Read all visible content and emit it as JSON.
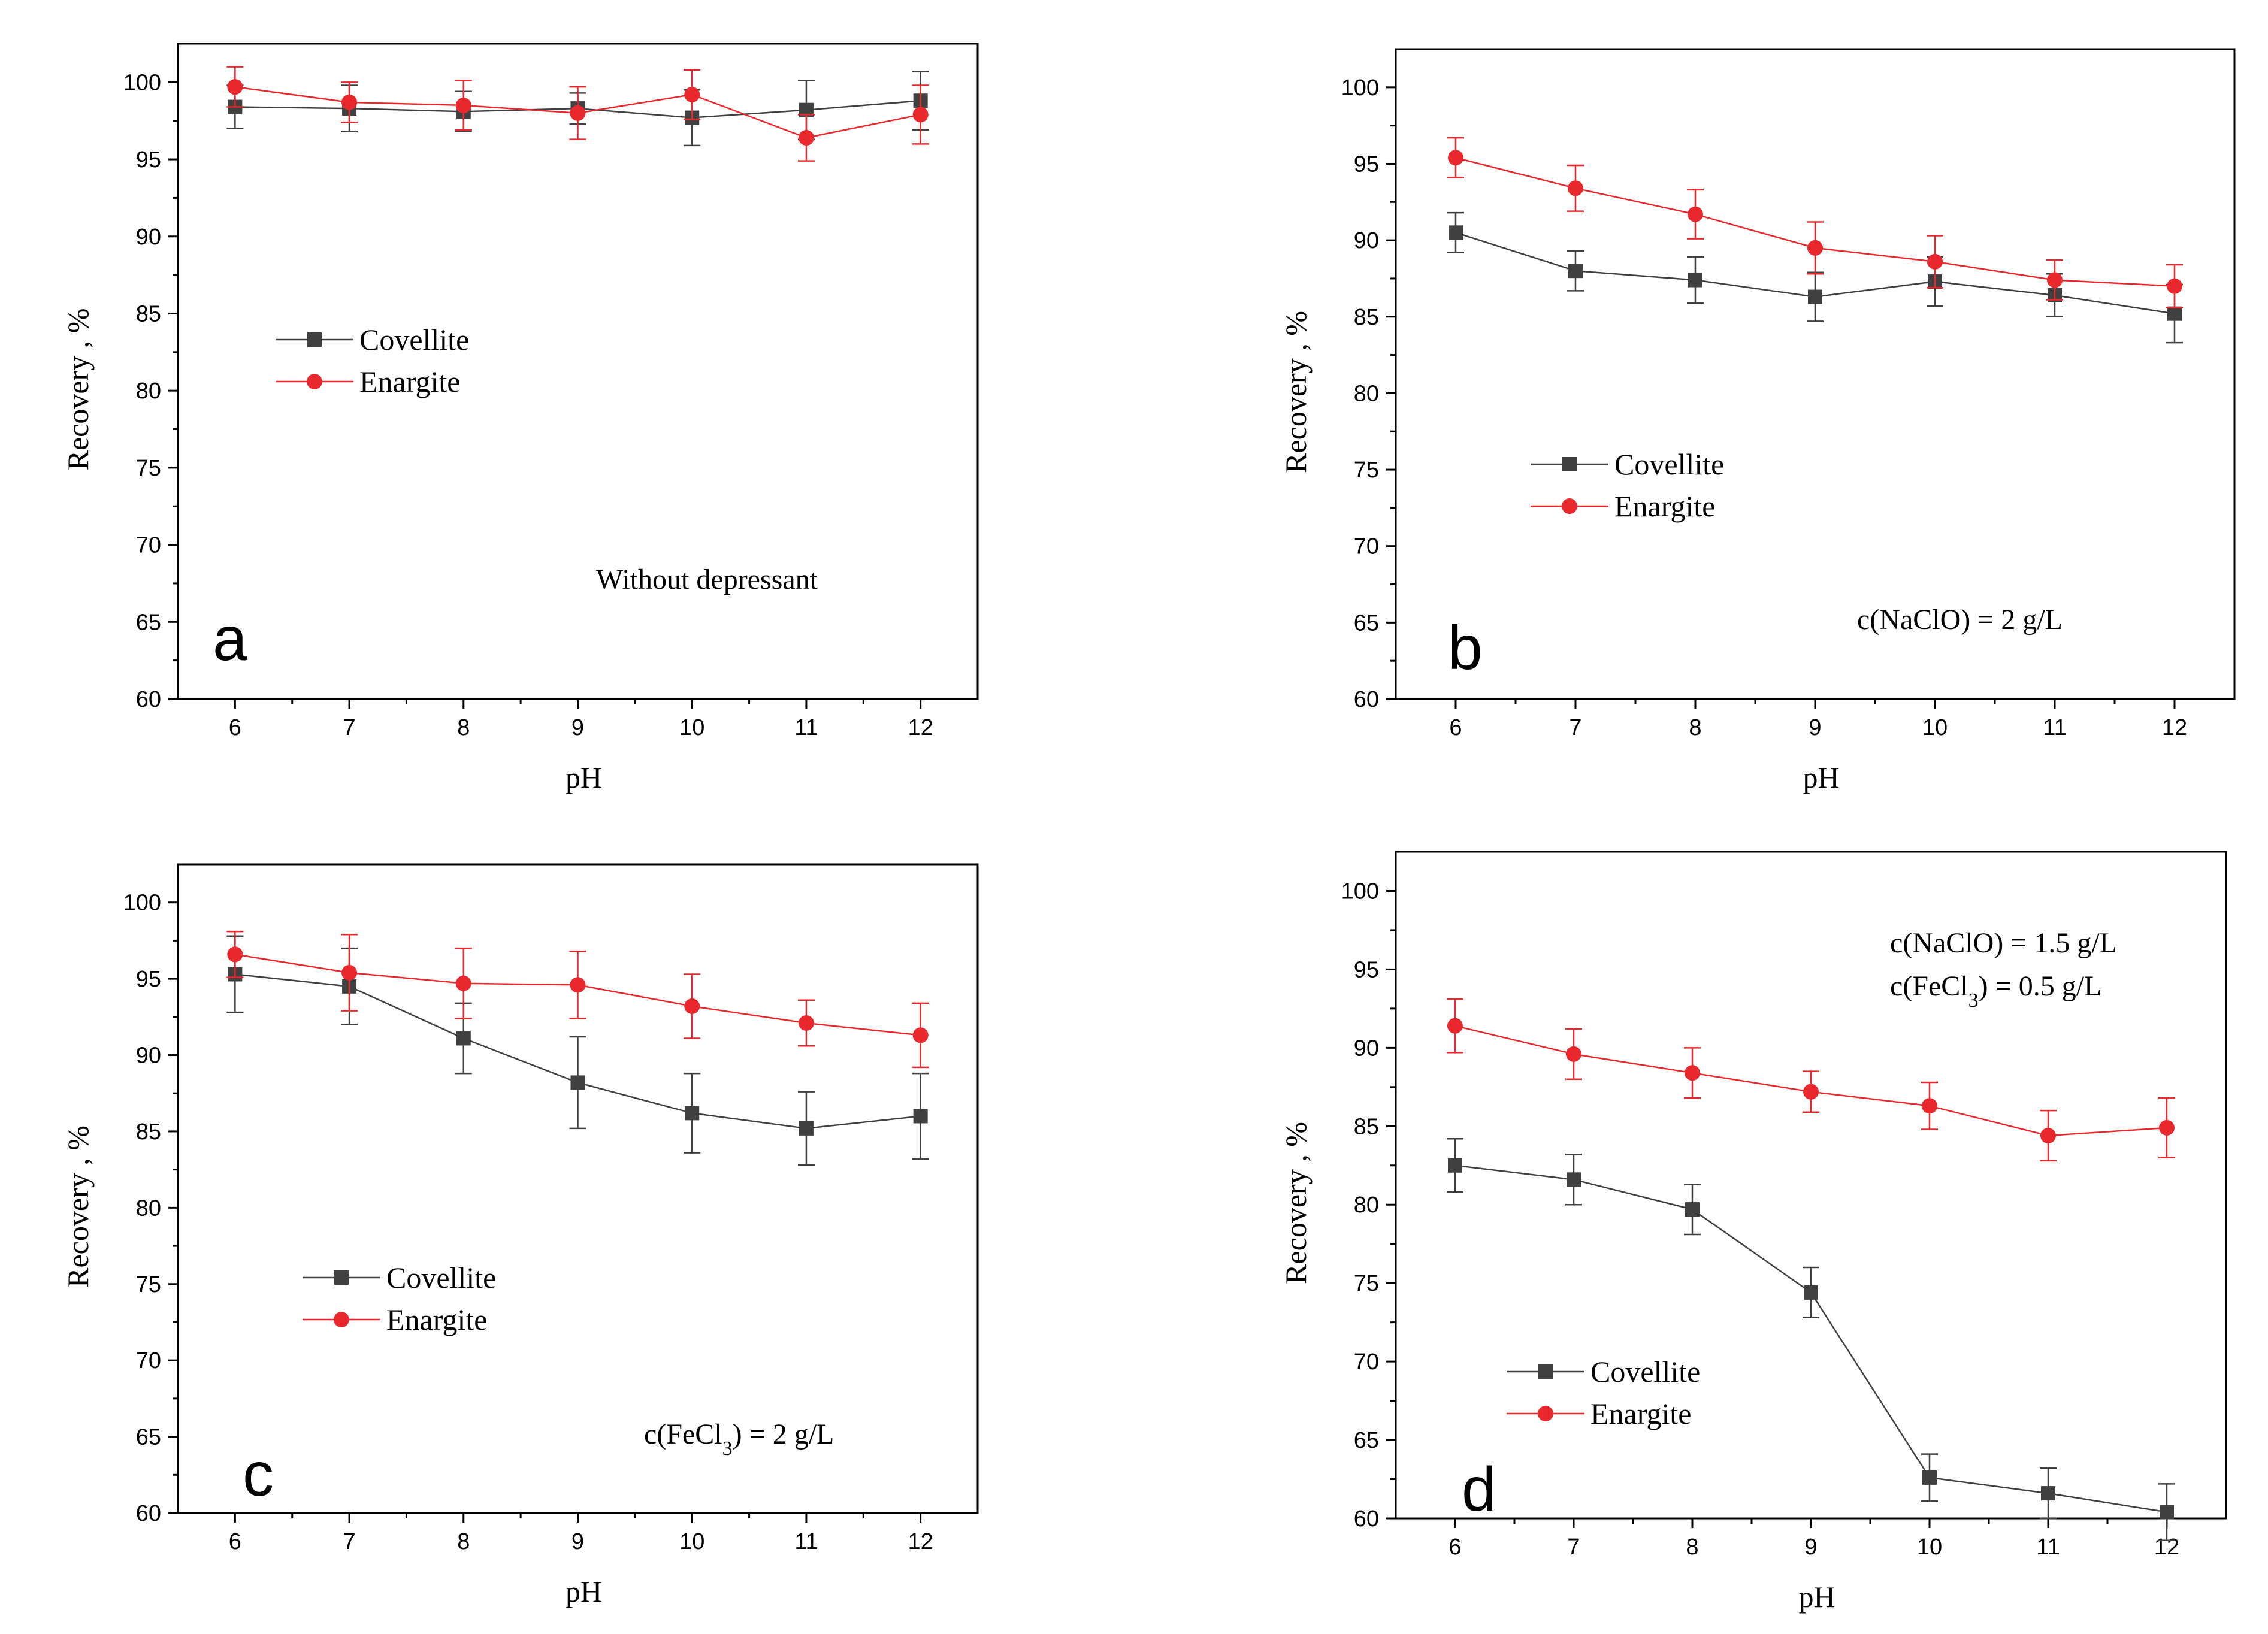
{
  "colors": {
    "covellite": "#404040",
    "enargite": "#e8282c",
    "axis": "#000000",
    "background": "#ffffff"
  },
  "chart_data": [
    {
      "type": "line",
      "panel_label": "a",
      "xlabel": "pH",
      "ylabel": "Recovery , %",
      "xlim": [
        5.5,
        12.5
      ],
      "ylim": [
        60,
        102.5
      ],
      "xticks": [
        6,
        7,
        8,
        9,
        10,
        11,
        12
      ],
      "yticks": [
        60,
        65,
        70,
        75,
        80,
        85,
        90,
        95,
        100
      ],
      "grid": false,
      "legend_placement": "middle-left",
      "annotation": [
        "Without depressant"
      ],
      "x": [
        6,
        7,
        8,
        9,
        10,
        11,
        12
      ],
      "series": [
        {
          "name": "Covellite",
          "marker": "square",
          "color": "#404040",
          "values": [
            98.4,
            98.3,
            98.1,
            98.3,
            97.7,
            98.2,
            98.8
          ],
          "errors": [
            1.4,
            1.5,
            1.3,
            1.0,
            1.8,
            1.9,
            1.9
          ]
        },
        {
          "name": "Enargite",
          "marker": "circle",
          "color": "#e8282c",
          "values": [
            99.7,
            98.7,
            98.5,
            98.0,
            99.2,
            96.4,
            97.9
          ],
          "errors": [
            1.3,
            1.3,
            1.6,
            1.7,
            1.6,
            1.5,
            1.9
          ]
        }
      ]
    },
    {
      "type": "line",
      "panel_label": "b",
      "xlabel": "pH",
      "ylabel": "Recovery , %",
      "xlim": [
        5.5,
        12.5
      ],
      "ylim": [
        60,
        102.5
      ],
      "xticks": [
        6,
        7,
        8,
        9,
        10,
        11,
        12
      ],
      "yticks": [
        60,
        65,
        70,
        75,
        80,
        85,
        90,
        95,
        100
      ],
      "grid": false,
      "legend_placement": "lower-left",
      "annotation": [
        "c(NaClO) = 2 g/L"
      ],
      "x": [
        6,
        7,
        8,
        9,
        10,
        11,
        12
      ],
      "series": [
        {
          "name": "Covellite",
          "marker": "square",
          "color": "#404040",
          "values": [
            90.5,
            88.0,
            87.4,
            86.3,
            87.3,
            86.4,
            85.2
          ],
          "errors": [
            1.3,
            1.3,
            1.5,
            1.6,
            1.6,
            1.4,
            1.9
          ]
        },
        {
          "name": "Enargite",
          "marker": "circle",
          "color": "#e8282c",
          "values": [
            95.4,
            93.4,
            91.7,
            89.5,
            88.6,
            87.4,
            87.0
          ],
          "errors": [
            1.3,
            1.5,
            1.6,
            1.7,
            1.7,
            1.3,
            1.4
          ]
        }
      ]
    },
    {
      "type": "line",
      "panel_label": "c",
      "xlabel": "pH",
      "ylabel": "Recovery , %",
      "xlim": [
        5.5,
        12.5
      ],
      "ylim": [
        60,
        102.5
      ],
      "xticks": [
        6,
        7,
        8,
        9,
        10,
        11,
        12
      ],
      "yticks": [
        60,
        65,
        70,
        75,
        80,
        85,
        90,
        95,
        100
      ],
      "grid": false,
      "legend_placement": "lower-left",
      "annotation": [
        "c(FeCl3) = 2 g/L"
      ],
      "x": [
        6,
        7,
        8,
        9,
        10,
        11,
        12
      ],
      "series": [
        {
          "name": "Covellite",
          "marker": "square",
          "color": "#404040",
          "values": [
            95.3,
            94.5,
            91.1,
            88.2,
            86.2,
            85.2,
            86.0
          ],
          "errors": [
            2.5,
            2.5,
            2.3,
            3.0,
            2.6,
            2.4,
            2.8
          ]
        },
        {
          "name": "Enargite",
          "marker": "circle",
          "color": "#e8282c",
          "values": [
            96.6,
            95.4,
            94.7,
            94.6,
            93.2,
            92.1,
            91.3
          ],
          "errors": [
            1.5,
            2.5,
            2.3,
            2.2,
            2.1,
            1.5,
            2.1
          ]
        }
      ]
    },
    {
      "type": "line",
      "panel_label": "d",
      "xlabel": "pH",
      "ylabel": "Recovery , %",
      "xlim": [
        5.5,
        12.5
      ],
      "ylim": [
        60,
        102.5
      ],
      "xticks": [
        6,
        7,
        8,
        9,
        10,
        11,
        12
      ],
      "yticks": [
        60,
        65,
        70,
        75,
        80,
        85,
        90,
        95,
        100
      ],
      "grid": false,
      "legend_placement": "lower-left",
      "annotation": [
        "c(NaClO) = 1.5 g/L",
        "c(FeCl3) = 0.5 g/L"
      ],
      "x": [
        6,
        7,
        8,
        9,
        10,
        11,
        12
      ],
      "series": [
        {
          "name": "Covellite",
          "marker": "square",
          "color": "#404040",
          "values": [
            82.5,
            81.6,
            79.7,
            74.4,
            62.6,
            61.6,
            60.4
          ],
          "errors": [
            1.7,
            1.6,
            1.6,
            1.6,
            1.5,
            1.6,
            1.8
          ]
        },
        {
          "name": "Enargite",
          "marker": "circle",
          "color": "#e8282c",
          "values": [
            91.4,
            89.6,
            88.4,
            87.2,
            86.3,
            84.4,
            84.9
          ],
          "errors": [
            1.7,
            1.6,
            1.6,
            1.3,
            1.5,
            1.6,
            1.9
          ]
        }
      ]
    }
  ]
}
